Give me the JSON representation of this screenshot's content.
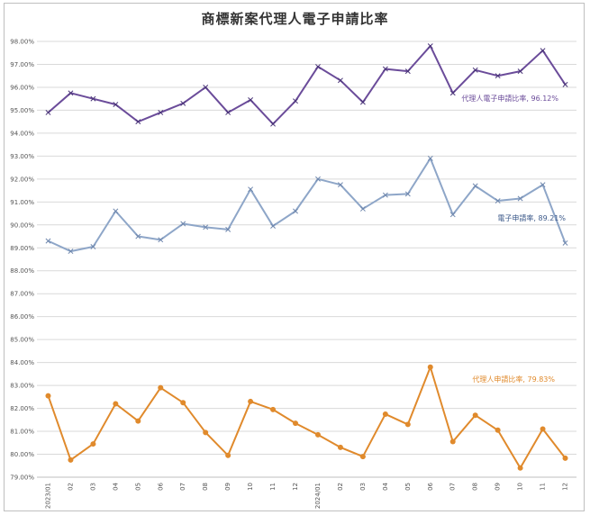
{
  "chart_data": {
    "type": "line",
    "title": "商標新案代理人電子申請比率",
    "xlabel": "",
    "ylabel": "",
    "categories": [
      "2023/01",
      "02",
      "03",
      "04",
      "05",
      "06",
      "07",
      "08",
      "09",
      "10",
      "11",
      "12",
      "2024/01",
      "02",
      "03",
      "04",
      "05",
      "06",
      "07",
      "08",
      "09",
      "10",
      "11",
      "12"
    ],
    "ylim": [
      79.0,
      98.0
    ],
    "yticks": [
      "98.00%",
      "97.00%",
      "96.00%",
      "95.00%",
      "94.00%",
      "93.00%",
      "92.00%",
      "91.00%",
      "90.00%",
      "89.00%",
      "88.00%",
      "87.00%",
      "86.00%",
      "85.00%",
      "84.00%",
      "83.00%",
      "82.00%",
      "81.00%",
      "80.00%",
      "79.00%"
    ],
    "grid": true,
    "series": [
      {
        "name": "代理人電子申請比率",
        "end_label": "代理人電子申請比率, 96.12%",
        "color": "#6b4c9a",
        "marker": "x",
        "values": [
          94.9,
          95.75,
          95.5,
          95.25,
          94.5,
          94.9,
          95.3,
          96.0,
          94.9,
          95.45,
          94.4,
          95.4,
          96.9,
          96.3,
          95.35,
          96.8,
          96.7,
          97.8,
          95.75,
          96.75,
          96.5,
          96.7,
          97.6,
          96.12
        ]
      },
      {
        "name": "電子申請率",
        "end_label": "電子申請率, 89.21%",
        "color": "#8ea6c8",
        "marker": "x",
        "values": [
          89.3,
          88.85,
          89.05,
          90.6,
          89.5,
          89.35,
          90.05,
          89.9,
          89.8,
          91.55,
          89.95,
          90.6,
          92.0,
          91.75,
          90.7,
          91.3,
          91.35,
          92.9,
          90.45,
          91.7,
          91.05,
          91.15,
          91.75,
          89.21
        ]
      },
      {
        "name": "代理人申請比率",
        "end_label": "代理人申請比率, 79.83%",
        "color": "#e08a2c",
        "marker": "circle",
        "values": [
          82.55,
          79.75,
          80.45,
          82.2,
          81.45,
          82.9,
          82.25,
          80.95,
          79.95,
          82.3,
          81.95,
          81.35,
          80.85,
          80.3,
          79.9,
          81.75,
          81.3,
          83.8,
          80.55,
          81.7,
          81.05,
          79.4,
          81.1,
          79.83
        ]
      }
    ]
  }
}
